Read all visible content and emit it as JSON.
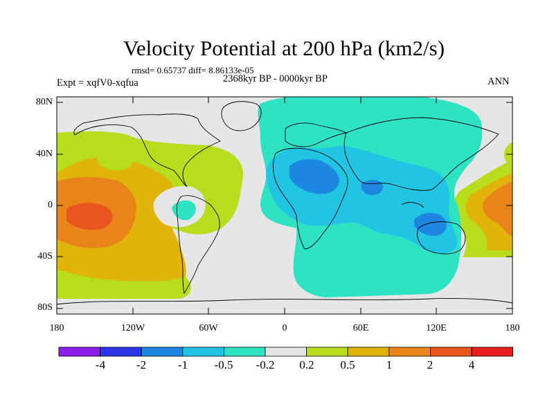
{
  "title": "Velocity Potential at 200 hPa (km2/s)",
  "stats": "rmsd= 0.65737 diff= 8.86133e-05",
  "expt": "Expt = xqfV0-xqfua",
  "period": "2368kyr BP - 0000kyr BP",
  "season": "ANN",
  "y_axis_labels": [
    "80N",
    "40N",
    "0",
    "40S",
    "80S"
  ],
  "x_axis_labels": [
    "180",
    "120W",
    "60W",
    "0",
    "60E",
    "120E",
    "180"
  ],
  "colorbar": {
    "labels": [
      "-4",
      "-2",
      "-1",
      "-0.5",
      "-0.2",
      "0.2",
      "0.5",
      "1",
      "2",
      "4"
    ],
    "colors": [
      "#8a1de8",
      "#2b35e8",
      "#1c86e0",
      "#22c4e4",
      "#2ee3c4",
      "#e6e6e6",
      "#b8dc1e",
      "#e0b40a",
      "#e8841a",
      "#e8561e",
      "#e81e1e"
    ]
  },
  "field_colors": {
    "neg_1": "#1c86e0",
    "neg_05": "#22c4e4",
    "neg_02": "#2ee3c4",
    "zero": "#e6e6e6",
    "pos_02": "#b8dc1e",
    "pos_05": "#e0b40a",
    "pos_1": "#e8841a",
    "pos_2": "#e8561e"
  }
}
